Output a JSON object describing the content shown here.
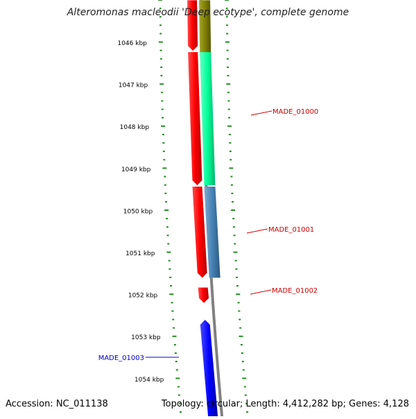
{
  "title": "Alteromonas macleodii 'Deep ecotype', complete genome",
  "accession": "Accession: NC_011138",
  "summary": "Topology: circular; Length: 4,412,282 bp; Genes: 4,128",
  "scale": [
    {
      "label": "1046 kbp",
      "kbp": 1046
    },
    {
      "label": "1047 kbp",
      "kbp": 1047
    },
    {
      "label": "1048 kbp",
      "kbp": 1048
    },
    {
      "label": "1049 kbp",
      "kbp": 1049
    },
    {
      "label": "1050 kbp",
      "kbp": 1050
    },
    {
      "label": "1051 kbp",
      "kbp": 1051
    },
    {
      "label": "1052 kbp",
      "kbp": 1052
    },
    {
      "label": "1053 kbp",
      "kbp": 1053
    },
    {
      "label": "1054 kbp",
      "kbp": 1054
    }
  ],
  "genes": [
    {
      "name": "MADE_01000",
      "strand": "+",
      "start_kbp": 1046.2,
      "end_kbp": 1049.4,
      "cds_color": "#ff0000",
      "feature_color": "#00ff99",
      "label_color": "#cc0000"
    },
    {
      "name": "MADE_01001",
      "strand": "+",
      "start_kbp": 1049.4,
      "end_kbp": 1051.6,
      "cds_color": "#ff0000",
      "feature_color": "#4682b4",
      "label_color": "#cc0000"
    },
    {
      "name": "MADE_01002",
      "strand": "+",
      "start_kbp": 1051.8,
      "end_kbp": 1052.2,
      "cds_color": "#ff0000",
      "feature_color": "",
      "label_color": "#cc0000"
    },
    {
      "name": "MADE_01003",
      "strand": "-",
      "start_kbp": 1052.6,
      "end_kbp": 1054.8,
      "cds_color": "#0000ff",
      "feature_color": "",
      "label_color": "#0000cc"
    }
  ],
  "partial_features": [
    {
      "strand": "+",
      "start_kbp": 1045.0,
      "end_kbp": 1046.2,
      "cds_color": "#ff0000",
      "feature_color": "#808000"
    }
  ],
  "colors": {
    "backbone": "#808080",
    "ticks": "#228b22",
    "label_line_plus": "#cc0000",
    "label_line_minus": "#0000cc"
  }
}
